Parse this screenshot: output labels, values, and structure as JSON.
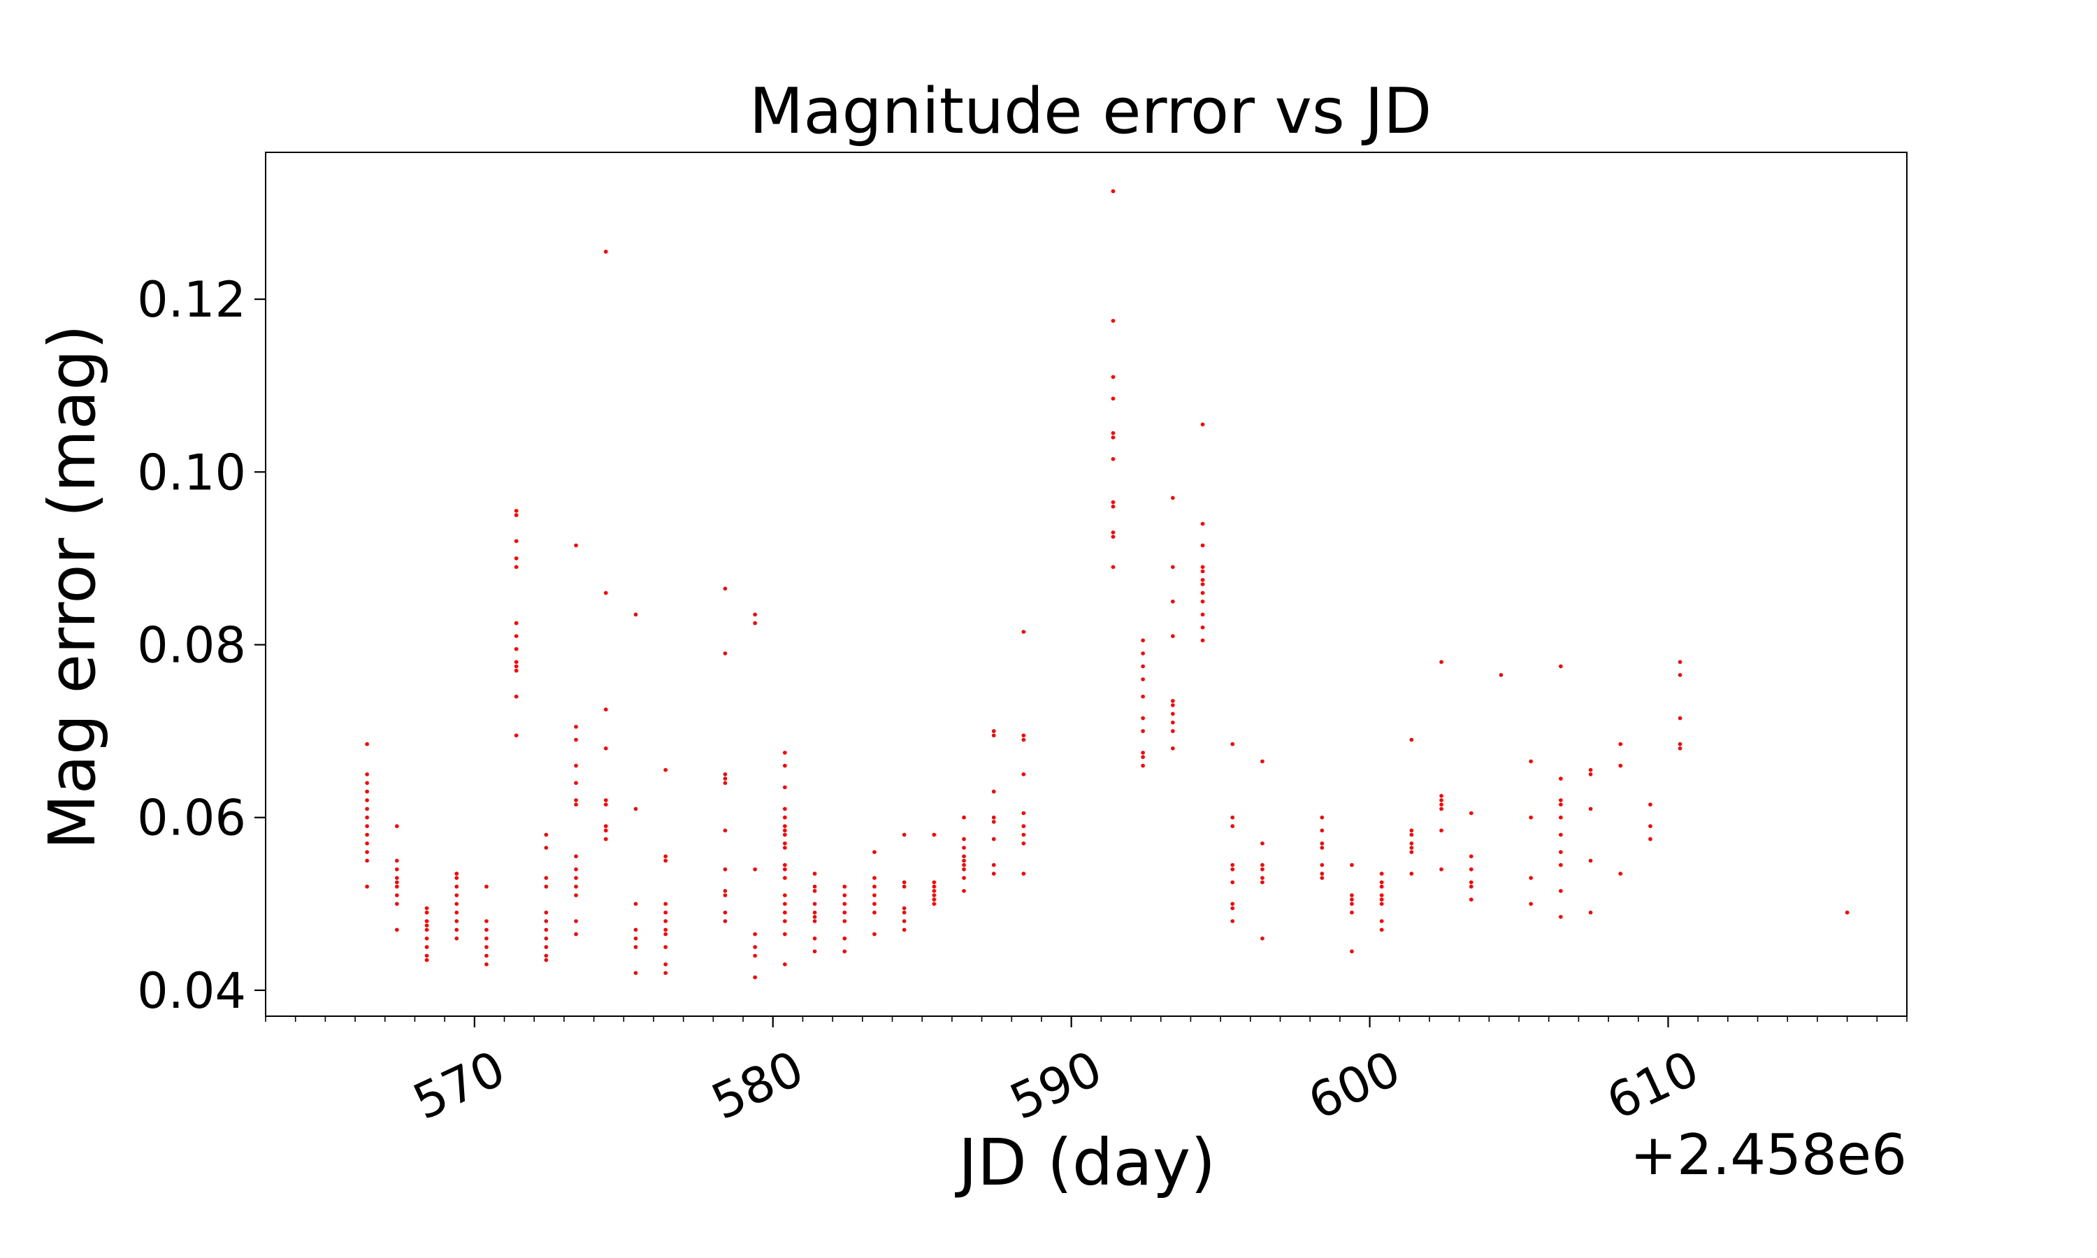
{
  "chart_data": {
    "type": "scatter",
    "title": "Magnitude error vs JD",
    "xlabel": "JD (day)",
    "ylabel": "Mag error (mag)",
    "x_offset_label": "+2.458e6",
    "xlim": [
      2458563.0,
      2458618.0
    ],
    "ylim": [
      0.037,
      0.137
    ],
    "x_ticks": [
      {
        "value": 2458570,
        "label": "570"
      },
      {
        "value": 2458580,
        "label": "580"
      },
      {
        "value": 2458590,
        "label": "590"
      },
      {
        "value": 2458600,
        "label": "600"
      },
      {
        "value": 2458610,
        "label": "610"
      }
    ],
    "y_ticks": [
      {
        "value": 0.04,
        "label": "0.04"
      },
      {
        "value": 0.06,
        "label": "0.06"
      },
      {
        "value": 0.08,
        "label": "0.08"
      },
      {
        "value": 0.1,
        "label": "0.10"
      },
      {
        "value": 0.12,
        "label": "0.12"
      }
    ],
    "x_minor_step": 1,
    "grid": false,
    "marker_color": "#ff0000",
    "x_tick_rotation_deg": -25,
    "series_groups": [
      {
        "x": 2458566.4,
        "y": [
          0.0685,
          0.065,
          0.064,
          0.063,
          0.062,
          0.061,
          0.06,
          0.059,
          0.058,
          0.057,
          0.056,
          0.055,
          0.052
        ]
      },
      {
        "x": 2458567.4,
        "y": [
          0.059,
          0.055,
          0.054,
          0.053,
          0.0525,
          0.052,
          0.051,
          0.05,
          0.047
        ]
      },
      {
        "x": 2458568.4,
        "y": [
          0.0495,
          0.049,
          0.048,
          0.0475,
          0.047,
          0.046,
          0.045,
          0.044,
          0.0435
        ]
      },
      {
        "x": 2458569.4,
        "y": [
          0.0535,
          0.053,
          0.052,
          0.051,
          0.05,
          0.049,
          0.048,
          0.047,
          0.046
        ]
      },
      {
        "x": 2458570.4,
        "y": [
          0.052,
          0.048,
          0.047,
          0.046,
          0.045,
          0.044,
          0.043
        ]
      },
      {
        "x": 2458571.4,
        "y": [
          0.0955,
          0.095,
          0.092,
          0.09,
          0.089,
          0.0825,
          0.081,
          0.0795,
          0.078,
          0.0775,
          0.077,
          0.074,
          0.0695
        ]
      },
      {
        "x": 2458572.4,
        "y": [
          0.058,
          0.0565,
          0.053,
          0.052,
          0.049,
          0.048,
          0.047,
          0.046,
          0.045,
          0.044,
          0.0435
        ]
      },
      {
        "x": 2458573.4,
        "y": [
          0.0915,
          0.0705,
          0.069,
          0.066,
          0.064,
          0.062,
          0.0615,
          0.0555,
          0.054,
          0.053,
          0.052,
          0.051,
          0.048,
          0.0465
        ]
      },
      {
        "x": 2458574.4,
        "y": [
          0.1255,
          0.086,
          0.0725,
          0.068,
          0.062,
          0.0615,
          0.059,
          0.0585,
          0.0575
        ]
      },
      {
        "x": 2458575.4,
        "y": [
          0.0835,
          0.061,
          0.05,
          0.047,
          0.046,
          0.045,
          0.042
        ]
      },
      {
        "x": 2458576.4,
        "y": [
          0.0655,
          0.0555,
          0.055,
          0.05,
          0.049,
          0.048,
          0.047,
          0.0465,
          0.045,
          0.043,
          0.042
        ]
      },
      {
        "x": 2458578.4,
        "y": [
          0.0865,
          0.079,
          0.065,
          0.0645,
          0.064,
          0.0585,
          0.054,
          0.0515,
          0.051,
          0.049,
          0.048
        ]
      },
      {
        "x": 2458579.4,
        "y": [
          0.0835,
          0.0825,
          0.054,
          0.0465,
          0.045,
          0.044,
          0.0415
        ]
      },
      {
        "x": 2458580.4,
        "y": [
          0.0675,
          0.066,
          0.0635,
          0.061,
          0.06,
          0.059,
          0.0585,
          0.058,
          0.057,
          0.0565,
          0.0545,
          0.054,
          0.053,
          0.051,
          0.05,
          0.049,
          0.048,
          0.0465,
          0.043
        ]
      },
      {
        "x": 2458581.4,
        "y": [
          0.0535,
          0.052,
          0.0515,
          0.05,
          0.049,
          0.0485,
          0.048,
          0.046,
          0.0445
        ]
      },
      {
        "x": 2458582.4,
        "y": [
          0.052,
          0.051,
          0.05,
          0.049,
          0.048,
          0.046,
          0.0445
        ]
      },
      {
        "x": 2458583.4,
        "y": [
          0.056,
          0.053,
          0.052,
          0.051,
          0.05,
          0.049,
          0.0465
        ]
      },
      {
        "x": 2458584.4,
        "y": [
          0.058,
          0.0525,
          0.052,
          0.0495,
          0.049,
          0.048,
          0.047
        ]
      },
      {
        "x": 2458585.4,
        "y": [
          0.058,
          0.0525,
          0.052,
          0.0515,
          0.051,
          0.0505,
          0.05
        ]
      },
      {
        "x": 2458586.4,
        "y": [
          0.06,
          0.0575,
          0.0565,
          0.0555,
          0.055,
          0.0545,
          0.054,
          0.053,
          0.0515
        ]
      },
      {
        "x": 2458587.4,
        "y": [
          0.07,
          0.0695,
          0.063,
          0.06,
          0.0595,
          0.0575,
          0.0545,
          0.0535
        ]
      },
      {
        "x": 2458588.4,
        "y": [
          0.0815,
          0.0695,
          0.069,
          0.065,
          0.0605,
          0.059,
          0.058,
          0.057,
          0.0535
        ]
      },
      {
        "x": 2458591.4,
        "y": [
          0.1325,
          0.1175,
          0.111,
          0.1085,
          0.1045,
          0.104,
          0.1015,
          0.0965,
          0.096,
          0.093,
          0.0925,
          0.089
        ]
      },
      {
        "x": 2458592.4,
        "y": [
          0.0805,
          0.079,
          0.0775,
          0.076,
          0.074,
          0.0715,
          0.07,
          0.0675,
          0.067,
          0.066
        ]
      },
      {
        "x": 2458593.4,
        "y": [
          0.097,
          0.089,
          0.085,
          0.081,
          0.0735,
          0.073,
          0.072,
          0.071,
          0.07,
          0.068
        ]
      },
      {
        "x": 2458594.4,
        "y": [
          0.1055,
          0.094,
          0.0915,
          0.089,
          0.0885,
          0.0875,
          0.087,
          0.086,
          0.085,
          0.0835,
          0.082,
          0.0805
        ]
      },
      {
        "x": 2458595.4,
        "y": [
          0.0685,
          0.06,
          0.059,
          0.0545,
          0.054,
          0.0525,
          0.05,
          0.0495,
          0.048
        ]
      },
      {
        "x": 2458596.4,
        "y": [
          0.0665,
          0.057,
          0.0545,
          0.054,
          0.053,
          0.0525,
          0.046
        ]
      },
      {
        "x": 2458598.4,
        "y": [
          0.06,
          0.0585,
          0.057,
          0.0565,
          0.0545,
          0.0535,
          0.053
        ]
      },
      {
        "x": 2458599.4,
        "y": [
          0.0545,
          0.051,
          0.0505,
          0.05,
          0.049,
          0.0445
        ]
      },
      {
        "x": 2458600.4,
        "y": [
          0.0535,
          0.0525,
          0.052,
          0.051,
          0.0505,
          0.05,
          0.048,
          0.047
        ]
      },
      {
        "x": 2458601.4,
        "y": [
          0.069,
          0.0585,
          0.058,
          0.057,
          0.0565,
          0.056,
          0.0535
        ]
      },
      {
        "x": 2458602.4,
        "y": [
          0.078,
          0.0625,
          0.062,
          0.0615,
          0.061,
          0.0585,
          0.054
        ]
      },
      {
        "x": 2458603.4,
        "y": [
          0.0605,
          0.0555,
          0.054,
          0.0525,
          0.052,
          0.0505
        ]
      },
      {
        "x": 2458604.4,
        "y": [
          0.0765
        ]
      },
      {
        "x": 2458605.4,
        "y": [
          0.0665,
          0.06,
          0.053,
          0.05
        ]
      },
      {
        "x": 2458606.4,
        "y": [
          0.0775,
          0.0645,
          0.062,
          0.0615,
          0.06,
          0.058,
          0.056,
          0.0545,
          0.0515,
          0.0485
        ]
      },
      {
        "x": 2458607.4,
        "y": [
          0.0655,
          0.065,
          0.061,
          0.055,
          0.049
        ]
      },
      {
        "x": 2458608.4,
        "y": [
          0.0685,
          0.066,
          0.0535
        ]
      },
      {
        "x": 2458609.4,
        "y": [
          0.0615,
          0.059,
          0.0575
        ]
      },
      {
        "x": 2458610.4,
        "y": [
          0.078,
          0.0765,
          0.0715,
          0.0685,
          0.068
        ]
      },
      {
        "x": 2458616.0,
        "y": [
          0.049
        ]
      }
    ]
  }
}
